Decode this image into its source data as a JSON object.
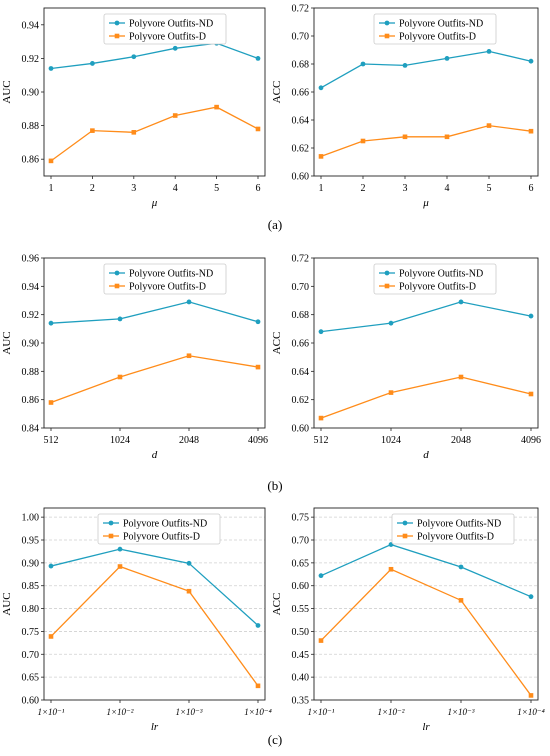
{
  "panel_labels": [
    "(a)",
    "(b)",
    "(c)"
  ],
  "colors": {
    "nd": "#1f9fbf",
    "d": "#ff8c1a",
    "grid": "#d0d0d0",
    "axis": "#222222"
  },
  "chart_data": [
    {
      "type": "line",
      "x": [
        1,
        2,
        3,
        4,
        5,
        6
      ],
      "xticks": [
        "1",
        "2",
        "3",
        "4",
        "5",
        "6"
      ],
      "xlabel": "μ",
      "ylabel": "AUC",
      "ylim": [
        0.85,
        0.95
      ],
      "yticks": [
        "0.86",
        "0.88",
        "0.90",
        "0.92",
        "0.94"
      ],
      "grid": false,
      "legend": "top-center",
      "series": [
        {
          "name": "Polyvore Outfits-ND",
          "values": [
            0.914,
            0.917,
            0.921,
            0.926,
            0.929,
            0.92
          ]
        },
        {
          "name": "Polyvore Outfits-D",
          "values": [
            0.859,
            0.877,
            0.876,
            0.886,
            0.891,
            0.878
          ]
        }
      ]
    },
    {
      "type": "line",
      "x": [
        1,
        2,
        3,
        4,
        5,
        6
      ],
      "xticks": [
        "1",
        "2",
        "3",
        "4",
        "5",
        "6"
      ],
      "xlabel": "μ",
      "ylabel": "ACC",
      "ylim": [
        0.6,
        0.72
      ],
      "yticks": [
        "0.60",
        "0.62",
        "0.64",
        "0.66",
        "0.68",
        "0.70",
        "0.72"
      ],
      "grid": false,
      "legend": "top-center",
      "series": [
        {
          "name": "Polyvore Outfits-ND",
          "values": [
            0.663,
            0.68,
            0.679,
            0.684,
            0.689,
            0.682
          ]
        },
        {
          "name": "Polyvore Outfits-D",
          "values": [
            0.614,
            0.625,
            0.628,
            0.628,
            0.636,
            0.632
          ]
        }
      ]
    },
    {
      "type": "line",
      "x": [
        512,
        1024,
        2048,
        4096
      ],
      "xticks": [
        "512",
        "1024",
        "2048",
        "4096"
      ],
      "xlabel": "d",
      "ylabel": "AUC",
      "ylim": [
        0.84,
        0.96
      ],
      "yticks": [
        "0.84",
        "0.86",
        "0.88",
        "0.90",
        "0.92",
        "0.94",
        "0.96"
      ],
      "grid": false,
      "legend": "top-center",
      "series": [
        {
          "name": "Polyvore Outfits-ND",
          "values": [
            0.914,
            0.917,
            0.929,
            0.915
          ]
        },
        {
          "name": "Polyvore Outfits-D",
          "values": [
            0.858,
            0.876,
            0.891,
            0.883
          ]
        }
      ]
    },
    {
      "type": "line",
      "x": [
        512,
        1024,
        2048,
        4096
      ],
      "xticks": [
        "512",
        "1024",
        "2048",
        "4096"
      ],
      "xlabel": "d",
      "ylabel": "ACC",
      "ylim": [
        0.6,
        0.72
      ],
      "yticks": [
        "0.60",
        "0.62",
        "0.64",
        "0.66",
        "0.68",
        "0.70",
        "0.72"
      ],
      "grid": false,
      "legend": "top-center",
      "series": [
        {
          "name": "Polyvore Outfits-ND",
          "values": [
            0.668,
            0.674,
            0.689,
            0.679
          ]
        },
        {
          "name": "Polyvore Outfits-D",
          "values": [
            0.607,
            0.625,
            0.636,
            0.624
          ]
        }
      ]
    },
    {
      "type": "line",
      "x": [
        "1×10⁻¹",
        "1×10⁻²",
        "1×10⁻³",
        "1×10⁻⁴"
      ],
      "xticks": [
        "1×10⁻¹",
        "1×10⁻²",
        "1×10⁻³",
        "1×10⁻⁴"
      ],
      "xlabel": "lr",
      "ylabel": "AUC",
      "ylim": [
        0.6,
        1.02
      ],
      "yticks": [
        "0.60",
        "0.65",
        "0.70",
        "0.75",
        "0.80",
        "0.85",
        "0.90",
        "0.95",
        "1.00"
      ],
      "grid": true,
      "legend": "top-right",
      "series": [
        {
          "name": "Polyvore Outfits-ND",
          "values": [
            0.893,
            0.93,
            0.899,
            0.763
          ]
        },
        {
          "name": "Polyvore Outfits-D",
          "values": [
            0.739,
            0.892,
            0.838,
            0.631
          ]
        }
      ]
    },
    {
      "type": "line",
      "x": [
        "1×10⁻¹",
        "1×10⁻²",
        "1×10⁻³",
        "1×10⁻⁴"
      ],
      "xticks": [
        "1×10⁻¹",
        "1×10⁻²",
        "1×10⁻³",
        "1×10⁻⁴"
      ],
      "xlabel": "lr",
      "ylabel": "ACC",
      "ylim": [
        0.35,
        0.77
      ],
      "yticks": [
        "0.35",
        "0.40",
        "0.45",
        "0.50",
        "0.55",
        "0.60",
        "0.65",
        "0.70",
        "0.75"
      ],
      "grid": true,
      "legend": "top-right",
      "series": [
        {
          "name": "Polyvore Outfits-ND",
          "values": [
            0.622,
            0.69,
            0.641,
            0.576
          ]
        },
        {
          "name": "Polyvore Outfits-D",
          "values": [
            0.48,
            0.636,
            0.568,
            0.36
          ]
        }
      ]
    }
  ]
}
